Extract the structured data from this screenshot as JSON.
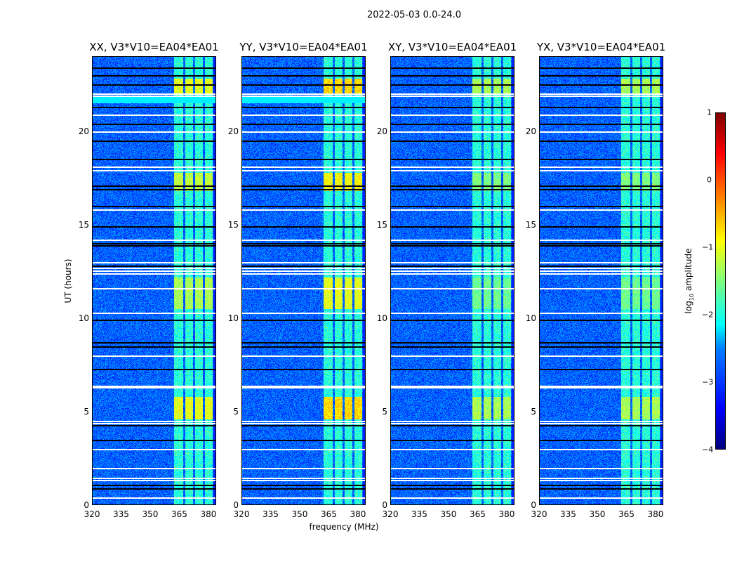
{
  "chart_data": {
    "type": "heatmap",
    "title": "2022-05-03 0.0-24.0",
    "xlabel": "frequency (MHz)",
    "ylabel": "UT (hours)",
    "xlim": [
      320,
      384
    ],
    "ylim": [
      0,
      24
    ],
    "xticks": [
      "320",
      "335",
      "350",
      "365",
      "380"
    ],
    "yticks": [
      "0",
      "5",
      "10",
      "15",
      "20"
    ],
    "panels": [
      {
        "title": "XX, V3*V10=EA04*EA01"
      },
      {
        "title": "YY, V3*V10=EA04*EA01"
      },
      {
        "title": "XY, V3*V10=EA04*EA01"
      },
      {
        "title": "YX, V3*V10=EA04*EA01"
      }
    ],
    "background_log10_amplitude": -2.9,
    "rfi_subbands_mhz": [
      [
        362,
        367
      ],
      [
        368,
        372
      ],
      [
        373,
        377
      ],
      [
        378,
        382
      ]
    ],
    "rfi_bursts_hours": [
      [
        4.6,
        5.8,
        -1.0
      ],
      [
        10.5,
        12.2,
        -1.3
      ],
      [
        16.8,
        17.8,
        -1.2
      ],
      [
        22.0,
        22.8,
        -1.0
      ]
    ],
    "flagged_hours_white": [
      0.4,
      1.35,
      1.45,
      2.0,
      3.0,
      4.4,
      4.5,
      6.3,
      6.4,
      8.0,
      10.3,
      11.6,
      12.4,
      12.55,
      12.7,
      13.0,
      14.2,
      15.8,
      17.9,
      18.1,
      20.0,
      20.9,
      21.9,
      22.0
    ],
    "dark_rows_hours": [
      0.9,
      1.1,
      3.5,
      4.3,
      7.3,
      8.5,
      8.7,
      9.9,
      12.8,
      13.9,
      14.0,
      14.9,
      16.0,
      16.9,
      17.1,
      18.5,
      19.5,
      20.4,
      21.3,
      22.5,
      23.0,
      23.4
    ],
    "colorbar": {
      "label": "log10 amplitude",
      "ticks": [
        "1",
        "0",
        "−1",
        "−2",
        "−3",
        "−4"
      ],
      "range": [
        -4,
        1
      ]
    }
  }
}
